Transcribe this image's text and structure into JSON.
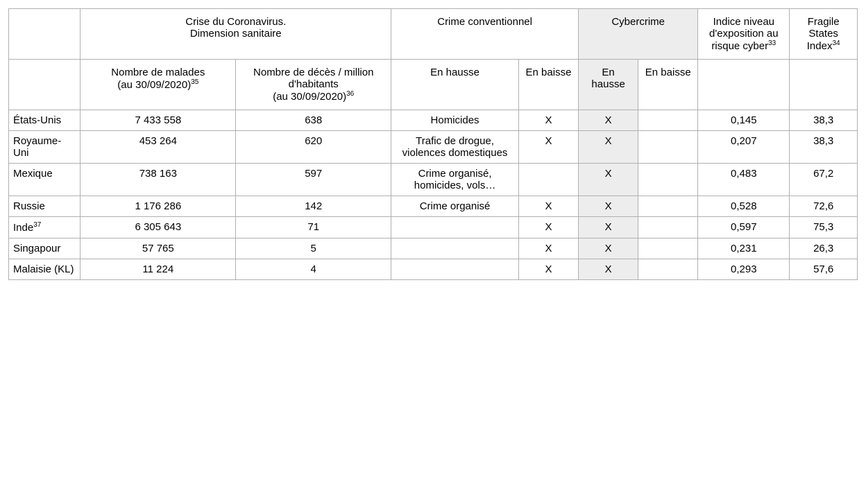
{
  "headers": {
    "corona": "Crise du Coronavirus.\nDimension sanitaire",
    "conventional_crime": "Crime conventionnel",
    "cybercrime": "Cybercrime",
    "cyber_risk_index": "Indice niveau d'exposition au risque cyber",
    "cyber_risk_sup": "33",
    "fragile_states": "Fragile States Index",
    "fragile_states_sup": "34"
  },
  "subheaders": {
    "sick_count": "Nombre de malades\n(au 30/09/2020)",
    "sick_sup": "35",
    "deaths_per_million": "Nombre de décès / million d'habitants\n(au 30/09/2020)",
    "deaths_sup": "36",
    "rising": "En hausse",
    "falling": "En baisse",
    "cyber_rising": "En hausse",
    "cyber_falling": "En baisse"
  },
  "rows": [
    {
      "country": "États-Unis",
      "country_sup": "",
      "sick": "7 433 558",
      "deaths": "638",
      "crime_up": "Homicides",
      "crime_down": "X",
      "cyber_up": "X",
      "cyber_down": "",
      "cyber_risk": "0,145",
      "fragile": "38,3"
    },
    {
      "country": "Royaume-Uni",
      "country_sup": "",
      "sick": "453 264",
      "deaths": "620",
      "crime_up": "Trafic de drogue, violences domestiques",
      "crime_down": "X",
      "cyber_up": "X",
      "cyber_down": "",
      "cyber_risk": "0,207",
      "fragile": "38,3"
    },
    {
      "country": "Mexique",
      "country_sup": "",
      "sick": "738 163",
      "deaths": "597",
      "crime_up": "Crime organisé, homicides, vols…",
      "crime_down": "",
      "cyber_up": "X",
      "cyber_down": "",
      "cyber_risk": "0,483",
      "fragile": "67,2"
    },
    {
      "country": "Russie",
      "country_sup": "",
      "sick": "1 176 286",
      "deaths": "142",
      "crime_up": "Crime organisé",
      "crime_down": "X",
      "cyber_up": "X",
      "cyber_down": "",
      "cyber_risk": "0,528",
      "fragile": "72,6"
    },
    {
      "country": "Inde",
      "country_sup": "37",
      "sick": "6 305 643",
      "deaths": "71",
      "crime_up": "",
      "crime_down": "X",
      "cyber_up": "X",
      "cyber_down": "",
      "cyber_risk": "0,597",
      "fragile": "75,3"
    },
    {
      "country": "Singapour",
      "country_sup": "",
      "sick": "57 765",
      "deaths": "5",
      "crime_up": "",
      "crime_down": "X",
      "cyber_up": "X",
      "cyber_down": "",
      "cyber_risk": "0,231",
      "fragile": "26,3"
    },
    {
      "country": "Malaisie (KL)",
      "country_sup": "",
      "sick": "11 224",
      "deaths": "4",
      "crime_up": "",
      "crime_down": "X",
      "cyber_up": "X",
      "cyber_down": "",
      "cyber_risk": "0,293",
      "fragile": "57,6"
    }
  ],
  "styling": {
    "border_color": "#b0b0b0",
    "shaded_bg": "#ededed",
    "font_size": 15,
    "sup_font_size": 10,
    "col_widths": {
      "country": 90,
      "sick": 195,
      "deaths": 195,
      "crime_up": 160,
      "crime_down": 75,
      "cyber_up": 75,
      "cyber_down": 75,
      "cyber_risk": 115,
      "fragile": 85
    }
  }
}
